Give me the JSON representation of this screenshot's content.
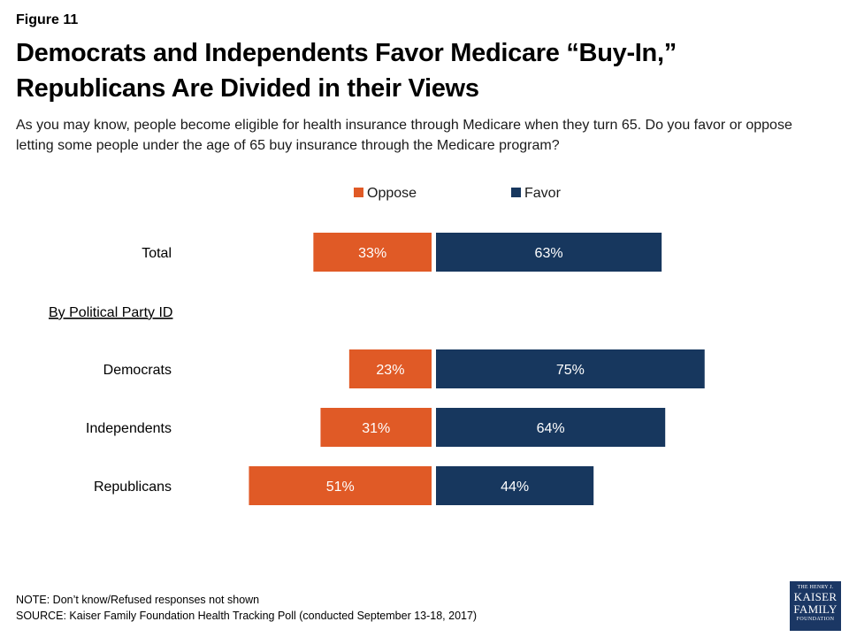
{
  "figure_label": "Figure 11",
  "title_line1": "Democrats and Independents Favor Medicare “Buy-In,”",
  "title_line2": "Republicans Are Divided in their Views",
  "subtitle": "As you may know, people become eligible for health insurance through Medicare when they turn 65. Do you favor or oppose letting some people under the age of 65 buy insurance through the Medicare program?",
  "colors": {
    "oppose": "#e05a26",
    "favor": "#17375e"
  },
  "chart_data": {
    "type": "bar",
    "orientation": "horizontal-diverging",
    "legend": [
      "Oppose",
      "Favor"
    ],
    "legend_position": "top",
    "group_label": "By Political Party ID",
    "categories": [
      "Total",
      "Democrats",
      "Independents",
      "Republicans"
    ],
    "series": [
      {
        "name": "Oppose",
        "values": [
          33,
          23,
          31,
          51
        ],
        "labels": [
          "33%",
          "23%",
          "31%",
          "51%"
        ]
      },
      {
        "name": "Favor",
        "values": [
          63,
          75,
          64,
          44
        ],
        "labels": [
          "63%",
          "75%",
          "64%",
          "44%"
        ]
      }
    ],
    "unit": "%",
    "grid": false
  },
  "footer": {
    "note": "NOTE: Don’t know/Refused responses not shown",
    "source": "SOURCE: Kaiser Family Foundation Health Tracking Poll (conducted September 13-18, 2017)"
  },
  "logo": {
    "line1": "THE HENRY J.",
    "line2": "KAISER",
    "line3": "FAMILY",
    "line4": "FOUNDATION"
  }
}
